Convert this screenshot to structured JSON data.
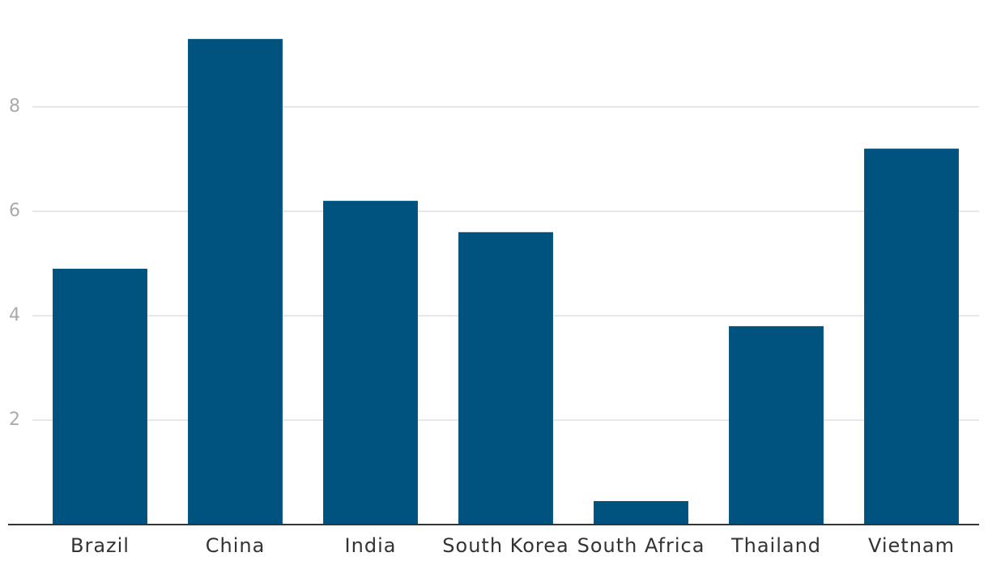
{
  "chart_data": {
    "type": "bar",
    "categories": [
      "Brazil",
      "China",
      "India",
      "South Korea",
      "South Africa",
      "Thailand",
      "Vietnam"
    ],
    "values": [
      4.9,
      9.3,
      6.2,
      5.6,
      0.45,
      3.8,
      7.2
    ],
    "color": "#00537f",
    "ylim": [
      0,
      10
    ],
    "yticks": [
      2,
      4,
      6,
      8
    ],
    "grid": true
  }
}
